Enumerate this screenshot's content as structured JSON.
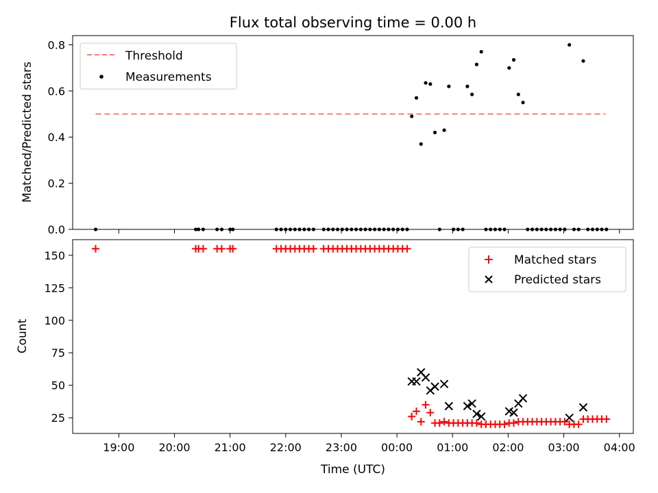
{
  "chart_data": [
    {
      "type": "scatter",
      "title": "Flux total observing time = 0.00 h",
      "xlabel": "",
      "ylabel": "Matched/Predicted stars",
      "x_axis": "Time (UTC), date-time axis running 18:10 to 04:15",
      "x_range_hours": [
        18.17,
        28.25
      ],
      "ylim": [
        0,
        0.84
      ],
      "yticks": [
        "0.0",
        "0.2",
        "0.4",
        "0.6",
        "0.8"
      ],
      "xticks": [
        "19:00",
        "20:00",
        "21:00",
        "22:00",
        "23:00",
        "00:00",
        "01:00",
        "02:00",
        "03:00",
        "04:00"
      ],
      "legend": {
        "placement": "top-left",
        "entries": [
          "Threshold",
          "Measurements"
        ]
      },
      "threshold": {
        "name": "Threshold",
        "value": 0.5,
        "x_start": "18:35",
        "x_end": "03:45",
        "color": "#ff7777",
        "style": "dashed"
      },
      "series": [
        {
          "name": "Measurements",
          "marker": "dot",
          "color": "#000000",
          "points": [
            [
              "18:35",
              0.0
            ],
            [
              "20:23",
              0.0
            ],
            [
              "20:26",
              0.0
            ],
            [
              "20:31",
              0.0
            ],
            [
              "20:46",
              0.0
            ],
            [
              "20:51",
              0.0
            ],
            [
              "21:00",
              0.0
            ],
            [
              "21:03",
              0.0
            ],
            [
              "21:50",
              0.0
            ],
            [
              "21:55",
              0.0
            ],
            [
              "22:00",
              0.0
            ],
            [
              "22:05",
              0.0
            ],
            [
              "22:10",
              0.0
            ],
            [
              "22:15",
              0.0
            ],
            [
              "22:20",
              0.0
            ],
            [
              "22:25",
              0.0
            ],
            [
              "22:30",
              0.0
            ],
            [
              "22:41",
              0.0
            ],
            [
              "22:46",
              0.0
            ],
            [
              "22:51",
              0.0
            ],
            [
              "22:56",
              0.0
            ],
            [
              "23:01",
              0.0
            ],
            [
              "23:06",
              0.0
            ],
            [
              "23:11",
              0.0
            ],
            [
              "23:16",
              0.0
            ],
            [
              "23:21",
              0.0
            ],
            [
              "23:26",
              0.0
            ],
            [
              "23:31",
              0.0
            ],
            [
              "23:36",
              0.0
            ],
            [
              "23:41",
              0.0
            ],
            [
              "23:46",
              0.0
            ],
            [
              "23:51",
              0.0
            ],
            [
              "23:56",
              0.0
            ],
            [
              "00:01",
              0.0
            ],
            [
              "00:06",
              0.0
            ],
            [
              "00:11",
              0.0
            ],
            [
              "00:16",
              0.49
            ],
            [
              "00:21",
              0.57
            ],
            [
              "00:26",
              0.37
            ],
            [
              "00:31",
              0.635
            ],
            [
              "00:36",
              0.63
            ],
            [
              "00:41",
              0.42
            ],
            [
              "00:46",
              0.0
            ],
            [
              "00:51",
              0.43
            ],
            [
              "00:56",
              0.62
            ],
            [
              "01:01",
              0.0
            ],
            [
              "01:06",
              0.0
            ],
            [
              "01:11",
              0.0
            ],
            [
              "01:16",
              0.62
            ],
            [
              "01:21",
              0.585
            ],
            [
              "01:26",
              0.715
            ],
            [
              "01:31",
              0.77
            ],
            [
              "01:36",
              0.0
            ],
            [
              "01:41",
              0.0
            ],
            [
              "01:46",
              0.0
            ],
            [
              "01:51",
              0.0
            ],
            [
              "01:56",
              0.0
            ],
            [
              "02:01",
              0.7
            ],
            [
              "02:06",
              0.735
            ],
            [
              "02:11",
              0.585
            ],
            [
              "02:16",
              0.55
            ],
            [
              "02:21",
              0.0
            ],
            [
              "02:26",
              0.0
            ],
            [
              "02:31",
              0.0
            ],
            [
              "02:36",
              0.0
            ],
            [
              "02:41",
              0.0
            ],
            [
              "02:46",
              0.0
            ],
            [
              "02:51",
              0.0
            ],
            [
              "02:56",
              0.0
            ],
            [
              "03:01",
              0.0
            ],
            [
              "03:06",
              0.8
            ],
            [
              "03:11",
              0.0
            ],
            [
              "03:16",
              0.0
            ],
            [
              "03:21",
              0.73
            ],
            [
              "03:26",
              0.0
            ],
            [
              "03:31",
              0.0
            ],
            [
              "03:36",
              0.0
            ],
            [
              "03:41",
              0.0
            ],
            [
              "03:46",
              0.0
            ]
          ]
        }
      ]
    },
    {
      "type": "scatter",
      "title": "",
      "xlabel": "Time (UTC)",
      "ylabel": "Count",
      "x_range_hours": [
        18.17,
        28.25
      ],
      "ylim": [
        13,
        162
      ],
      "yticks": [
        "25",
        "50",
        "75",
        "100",
        "125",
        "150"
      ],
      "xticks": [
        "19:00",
        "20:00",
        "21:00",
        "22:00",
        "23:00",
        "00:00",
        "01:00",
        "02:00",
        "03:00",
        "04:00"
      ],
      "legend": {
        "placement": "top-right",
        "entries": [
          "Matched stars",
          "Predicted stars"
        ]
      },
      "series": [
        {
          "name": "Matched stars",
          "marker": "plus",
          "color": "#ff0000",
          "points": [
            [
              "18:35",
              155
            ],
            [
              "20:23",
              155
            ],
            [
              "20:26",
              155
            ],
            [
              "20:31",
              155
            ],
            [
              "20:46",
              155
            ],
            [
              "20:51",
              155
            ],
            [
              "21:00",
              155
            ],
            [
              "21:03",
              155
            ],
            [
              "21:50",
              155
            ],
            [
              "21:55",
              155
            ],
            [
              "22:00",
              155
            ],
            [
              "22:05",
              155
            ],
            [
              "22:10",
              155
            ],
            [
              "22:15",
              155
            ],
            [
              "22:20",
              155
            ],
            [
              "22:25",
              155
            ],
            [
              "22:30",
              155
            ],
            [
              "22:41",
              155
            ],
            [
              "22:46",
              155
            ],
            [
              "22:51",
              155
            ],
            [
              "22:56",
              155
            ],
            [
              "23:01",
              155
            ],
            [
              "23:06",
              155
            ],
            [
              "23:11",
              155
            ],
            [
              "23:16",
              155
            ],
            [
              "23:21",
              155
            ],
            [
              "23:26",
              155
            ],
            [
              "23:31",
              155
            ],
            [
              "23:36",
              155
            ],
            [
              "23:41",
              155
            ],
            [
              "23:46",
              155
            ],
            [
              "23:51",
              155
            ],
            [
              "23:56",
              155
            ],
            [
              "00:01",
              155
            ],
            [
              "00:06",
              155
            ],
            [
              "00:11",
              155
            ],
            [
              "00:16",
              26
            ],
            [
              "00:21",
              30
            ],
            [
              "00:26",
              22
            ],
            [
              "00:31",
              35
            ],
            [
              "00:36",
              29
            ],
            [
              "00:41",
              21
            ],
            [
              "00:46",
              21
            ],
            [
              "00:51",
              22
            ],
            [
              "00:56",
              21
            ],
            [
              "01:01",
              21
            ],
            [
              "01:06",
              21
            ],
            [
              "01:11",
              21
            ],
            [
              "01:16",
              21
            ],
            [
              "01:21",
              21
            ],
            [
              "01:26",
              21
            ],
            [
              "01:31",
              20
            ],
            [
              "01:36",
              20
            ],
            [
              "01:41",
              20
            ],
            [
              "01:46",
              20
            ],
            [
              "01:51",
              20
            ],
            [
              "01:56",
              20
            ],
            [
              "02:01",
              21
            ],
            [
              "02:06",
              21
            ],
            [
              "02:11",
              22
            ],
            [
              "02:16",
              22
            ],
            [
              "02:21",
              22
            ],
            [
              "02:26",
              22
            ],
            [
              "02:31",
              22
            ],
            [
              "02:36",
              22
            ],
            [
              "02:41",
              22
            ],
            [
              "02:46",
              22
            ],
            [
              "02:51",
              22
            ],
            [
              "02:56",
              22
            ],
            [
              "03:01",
              22
            ],
            [
              "03:06",
              20
            ],
            [
              "03:11",
              20
            ],
            [
              "03:16",
              20
            ],
            [
              "03:21",
              24
            ],
            [
              "03:26",
              24
            ],
            [
              "03:31",
              24
            ],
            [
              "03:36",
              24
            ],
            [
              "03:41",
              24
            ],
            [
              "03:46",
              24
            ]
          ]
        },
        {
          "name": "Predicted stars",
          "marker": "x",
          "color": "#000000",
          "points": [
            [
              "00:16",
              53
            ],
            [
              "00:21",
              53
            ],
            [
              "00:26",
              60
            ],
            [
              "00:31",
              56
            ],
            [
              "00:36",
              46
            ],
            [
              "00:41",
              49
            ],
            [
              "00:51",
              51
            ],
            [
              "00:56",
              34
            ],
            [
              "01:16",
              34
            ],
            [
              "01:21",
              36
            ],
            [
              "01:26",
              28
            ],
            [
              "01:31",
              26
            ],
            [
              "02:01",
              30
            ],
            [
              "02:06",
              29
            ],
            [
              "02:11",
              36
            ],
            [
              "02:16",
              40
            ],
            [
              "03:06",
              25
            ],
            [
              "03:21",
              33
            ]
          ]
        }
      ]
    }
  ]
}
